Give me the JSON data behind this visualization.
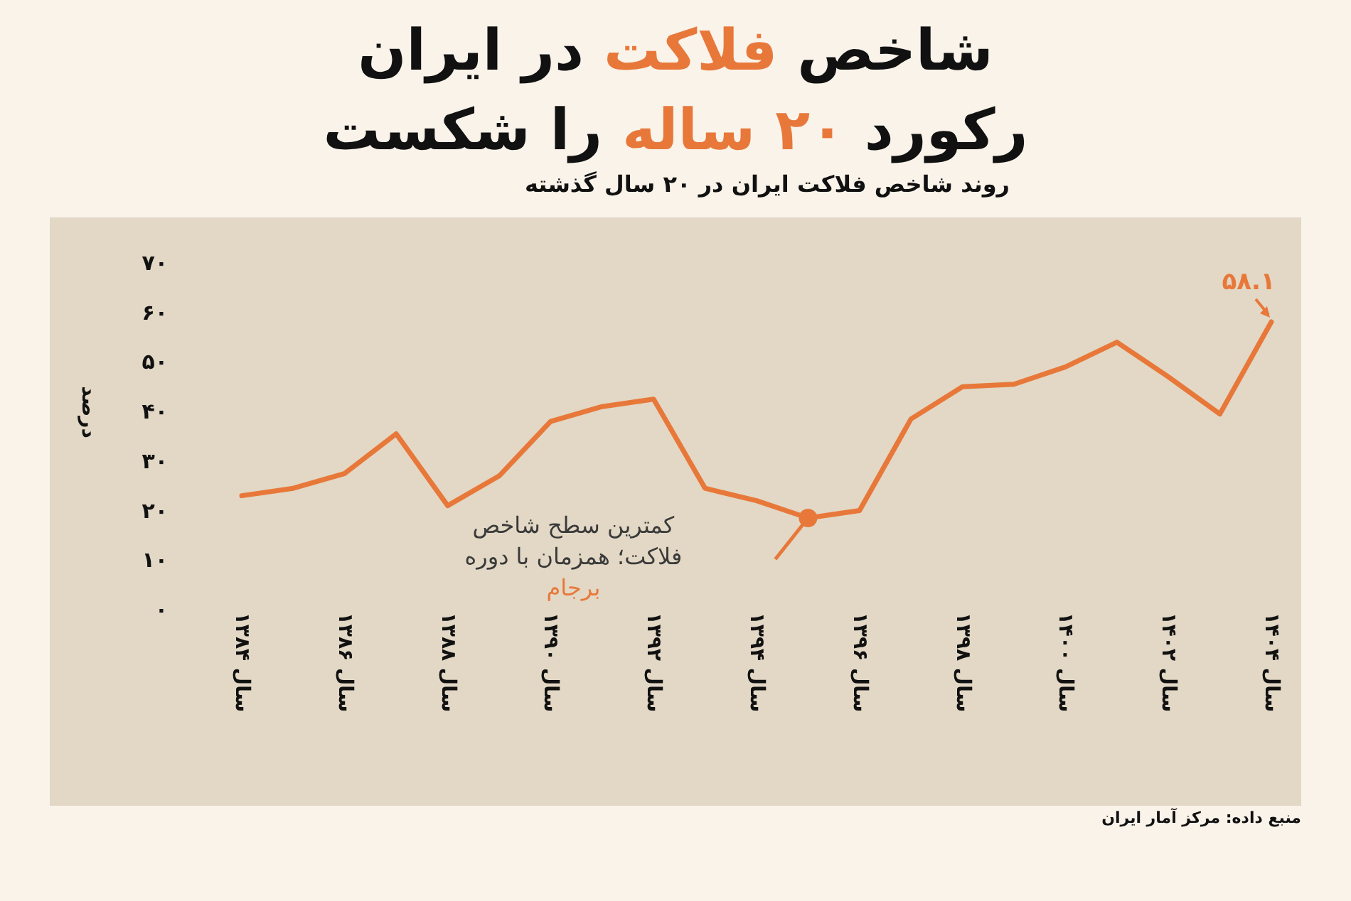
{
  "chart_data": {
    "type": "line",
    "title": "شاخص فلاکت در ایران رکورد ۲۰ ساله را شکست",
    "subtitle": "روند شاخص فلاکت ایران در ۲۰ سال گذشته",
    "ylabel": "درصد",
    "categories": [
      "سال ۱۳۸۴",
      null,
      "سال ۱۳۸۶",
      null,
      "سال ۱۳۸۸",
      null,
      "سال ۱۳۹۰",
      null,
      "سال ۱۳۹۲",
      null,
      "سال ۱۳۹۴",
      null,
      "سال ۱۳۹۶",
      null,
      "سال ۱۳۹۸",
      null,
      "سال ۱۴۰۰",
      null,
      "سال ۱۴۰۲",
      null,
      "سال ۱۴۰۴"
    ],
    "values": [
      23,
      24.5,
      27.5,
      35.5,
      21,
      27,
      38,
      41,
      42.5,
      24.5,
      22,
      18.5,
      20,
      38.5,
      45,
      45.5,
      49,
      54,
      47,
      39.5,
      58.1
    ],
    "value_labels": [
      null,
      null,
      null,
      null,
      null,
      null,
      null,
      null,
      null,
      null,
      null,
      null,
      null,
      null,
      null,
      null,
      null,
      null,
      null,
      null,
      "۵۸.۱"
    ],
    "color": "#e8783a",
    "ylim": [
      0,
      70
    ],
    "yticks": [
      {
        "value": 0,
        "label": "۰"
      },
      {
        "value": 10,
        "label": "۱۰"
      },
      {
        "value": 20,
        "label": "۲۰"
      },
      {
        "value": 30,
        "label": "۳۰"
      },
      {
        "value": 40,
        "label": "۴۰"
      },
      {
        "value": 50,
        "label": "۵۰"
      },
      {
        "value": 60,
        "label": "۶۰"
      },
      {
        "value": 70,
        "label": "۷۰"
      }
    ],
    "annotations": [
      "کمترین سطح شاخص فلاکت؛ همزمان با دوره برجام",
      "منبع داده: مرکز آمار ایران"
    ]
  }
}
